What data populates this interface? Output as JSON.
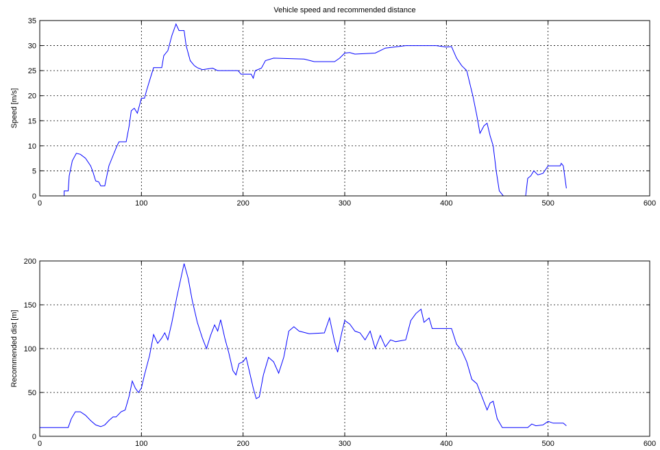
{
  "chart_data": [
    {
      "type": "line",
      "title": "Vehicle speed and recommended distance",
      "ylabel": "Speed [m/s]",
      "xlim": [
        0,
        600
      ],
      "ylim": [
        0,
        35
      ],
      "xticks": [
        0,
        100,
        200,
        300,
        400,
        500,
        600
      ],
      "yticks": [
        0,
        5,
        10,
        15,
        20,
        25,
        30,
        35
      ],
      "grid": true,
      "color": "#0000ff",
      "x": [
        0,
        24,
        24,
        28,
        29,
        32,
        36,
        40,
        45,
        50,
        52,
        55,
        58,
        60,
        64,
        66,
        68,
        72,
        76,
        78,
        85,
        88,
        90,
        93,
        96,
        98,
        100,
        103,
        105,
        108,
        112,
        120,
        122,
        126,
        130,
        134,
        137,
        142,
        144,
        148,
        152,
        155,
        160,
        170,
        175,
        195,
        198,
        208,
        210,
        212,
        218,
        222,
        230,
        260,
        270,
        290,
        295,
        300,
        305,
        310,
        330,
        340,
        360,
        390,
        400,
        405,
        410,
        415,
        420,
        423,
        426,
        430,
        433,
        437,
        440,
        443,
        446,
        449,
        452,
        456,
        478,
        480,
        483,
        486,
        490,
        495,
        500,
        505,
        512,
        513,
        515,
        518
      ],
      "values": [
        0,
        0,
        1,
        1,
        4,
        7,
        8.5,
        8.3,
        7.5,
        6,
        5,
        3,
        2.8,
        2,
        2,
        4,
        6,
        8,
        10,
        10.8,
        10.8,
        14,
        17,
        17.5,
        16.5,
        18,
        19.5,
        19.5,
        21,
        23,
        25.6,
        25.6,
        28,
        29,
        32,
        34.3,
        33,
        33,
        30,
        27,
        26,
        25.6,
        25.2,
        25.5,
        25,
        25,
        24.3,
        24.3,
        23.5,
        25,
        25.5,
        27,
        27.5,
        27.3,
        26.8,
        26.8,
        27.5,
        28.5,
        28.6,
        28.3,
        28.5,
        29.5,
        30,
        30,
        29.7,
        29.8,
        27.5,
        26,
        25,
        22.5,
        20,
        16,
        12.5,
        14,
        14.5,
        12,
        10,
        5,
        1,
        0,
        0,
        3.5,
        4,
        5,
        4.2,
        4.5,
        6,
        6,
        6,
        6.5,
        6,
        1.5
      ]
    },
    {
      "type": "line",
      "ylabel": "Recommended dist [m]",
      "xlim": [
        0,
        600
      ],
      "ylim": [
        0,
        200
      ],
      "xticks": [
        0,
        100,
        200,
        300,
        400,
        500,
        600
      ],
      "yticks": [
        0,
        50,
        100,
        150,
        200
      ],
      "grid": true,
      "color": "#0000ff",
      "x": [
        0,
        28,
        31,
        35,
        40,
        45,
        50,
        55,
        60,
        64,
        68,
        72,
        75,
        80,
        84,
        88,
        91,
        94,
        97,
        100,
        103,
        108,
        112,
        116,
        120,
        123,
        126,
        130,
        135,
        142,
        146,
        150,
        155,
        160,
        164,
        168,
        172,
        175,
        178,
        182,
        186,
        190,
        193,
        196,
        200,
        203,
        206,
        210,
        213,
        216,
        220,
        225,
        230,
        235,
        240,
        245,
        250,
        255,
        265,
        280,
        285,
        290,
        293,
        297,
        300,
        305,
        310,
        315,
        320,
        325,
        330,
        335,
        340,
        345,
        350,
        360,
        365,
        370,
        375,
        378,
        383,
        386,
        400,
        405,
        410,
        415,
        420,
        425,
        430,
        435,
        440,
        443,
        446,
        450,
        455,
        480,
        484,
        488,
        495,
        500,
        505,
        515,
        518
      ],
      "values": [
        10,
        10,
        20,
        28,
        28,
        24,
        18,
        13,
        11,
        13,
        18,
        22,
        22,
        28,
        30,
        46,
        63,
        55,
        50,
        55,
        70,
        92,
        116,
        106,
        112,
        118,
        110,
        130,
        160,
        197,
        180,
        155,
        130,
        112,
        100,
        115,
        127,
        120,
        133,
        112,
        95,
        75,
        70,
        83,
        85,
        90,
        75,
        55,
        43,
        45,
        70,
        90,
        85,
        72,
        90,
        120,
        125,
        120,
        117,
        118,
        135,
        108,
        96,
        118,
        132,
        128,
        120,
        118,
        110,
        120,
        100,
        115,
        102,
        110,
        108,
        110,
        132,
        140,
        145,
        130,
        135,
        123,
        123,
        123,
        105,
        98,
        85,
        65,
        60,
        45,
        30,
        38,
        40,
        20,
        10,
        10,
        14,
        12,
        13,
        17,
        15,
        15,
        12
      ]
    }
  ]
}
